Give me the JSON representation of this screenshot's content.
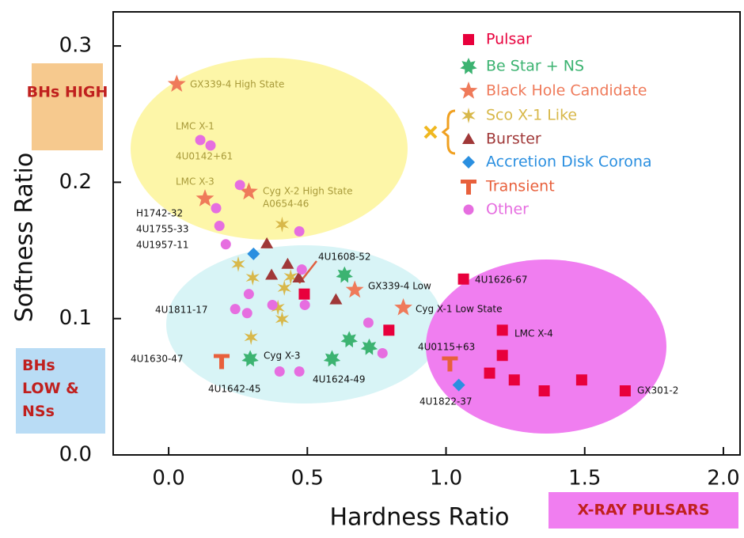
{
  "chart_data": {
    "type": "scatter",
    "xlabel": "Hardness Ratio",
    "ylabel": "Softness Ratio",
    "xlim": [
      -0.2,
      2.06
    ],
    "ylim": [
      0,
      0.325
    ],
    "xticks": [
      {
        "value": 0,
        "label": "0.0"
      },
      0.5,
      {
        "value": 1,
        "label": "1.0"
      },
      1.5,
      {
        "value": 2,
        "label": "2.0"
      }
    ],
    "yticks": [
      {
        "value": 0,
        "label": "0.0"
      },
      0.1,
      0.2,
      0.3
    ],
    "regions": [
      "BHs HIGH",
      "BHs LOW & NSs",
      "X-RAY PULSARS"
    ],
    "annotations": [
      "GX339-4 High State",
      "LMC X-1",
      "4U0142+61",
      "LMC X-3",
      "Cyg X-2 High State",
      "A0654-46",
      "H1742-32",
      "4U1755-33",
      "4U1957-11",
      "4U1608-52",
      "GX339-4 Low",
      "4U1626-67",
      "Cyg X-1 Low State",
      "4U1811-17",
      "LMC X-4",
      "4U0115+63",
      "4U1630-47",
      "Cyg X-3",
      "4U1624-49",
      "4U1642-45",
      "4U1822-37",
      "GX301-2"
    ],
    "series": [
      {
        "name": "Pulsar",
        "color": "#e8003c",
        "marker": "square",
        "x": [
          1.063,
          1.203,
          1.203,
          1.157,
          1.246,
          1.354,
          1.489,
          1.646,
          0.794,
          0.489
        ],
        "values": [
          0.129,
          0.0915,
          0.073,
          0.06,
          0.055,
          0.047,
          0.055,
          0.047,
          0.0915,
          0.118
        ]
      },
      {
        "name": "Be Star + NS",
        "color": "#3cb371",
        "marker": "star7",
        "x": [
          0.634,
          0.294,
          0.589,
          0.651,
          0.723
        ],
        "values": [
          0.132,
          0.0705,
          0.0705,
          0.0845,
          0.079
        ]
      },
      {
        "name": "Black Hole Candidate",
        "color": "#ef7a5a",
        "marker": "star5",
        "x": [
          0.029,
          0.131,
          0.289,
          0.671,
          0.846
        ],
        "values": [
          0.272,
          0.188,
          0.193,
          0.121,
          0.108
        ]
      },
      {
        "name": "Sco X-1 Like",
        "color": "#d8b84a",
        "marker": "asterisk",
        "x": [
          0.409,
          0.251,
          0.303,
          0.417,
          0.44,
          0.394,
          0.409,
          0.297
        ],
        "values": [
          0.169,
          0.14,
          0.13,
          0.1225,
          0.1306,
          0.108,
          0.0997,
          0.0863
        ]
      },
      {
        "name": "Burster",
        "color": "#a03838",
        "marker": "triangle",
        "x": [
          0.354,
          0.371,
          0.429,
          0.469,
          0.603
        ],
        "values": [
          0.155,
          0.132,
          0.14,
          0.13,
          0.114
        ]
      },
      {
        "name": "Accretion Disk Corona",
        "color": "#2a8fe0",
        "marker": "diamond",
        "x": [
          0.306,
          1.046
        ],
        "values": [
          0.1475,
          0.0513
        ]
      },
      {
        "name": "Transient",
        "color": "#e8603c",
        "marker": "tee",
        "x": [
          0.191,
          1.014
        ],
        "values": [
          0.0688,
          0.067
        ]
      },
      {
        "name": "Other",
        "color": "#e66ee0",
        "marker": "circle",
        "x": [
          0.114,
          0.151,
          0.171,
          0.183,
          0.206,
          0.257,
          0.471,
          0.289,
          0.283,
          0.24,
          0.374,
          0.491,
          0.72,
          0.771,
          0.4,
          0.471,
          0.48
        ],
        "values": [
          0.231,
          0.227,
          0.181,
          0.168,
          0.1545,
          0.198,
          0.164,
          0.118,
          0.104,
          0.107,
          0.11,
          0.11,
          0.097,
          0.0746,
          0.0612,
          0.0612,
          0.136
        ]
      }
    ]
  }
}
